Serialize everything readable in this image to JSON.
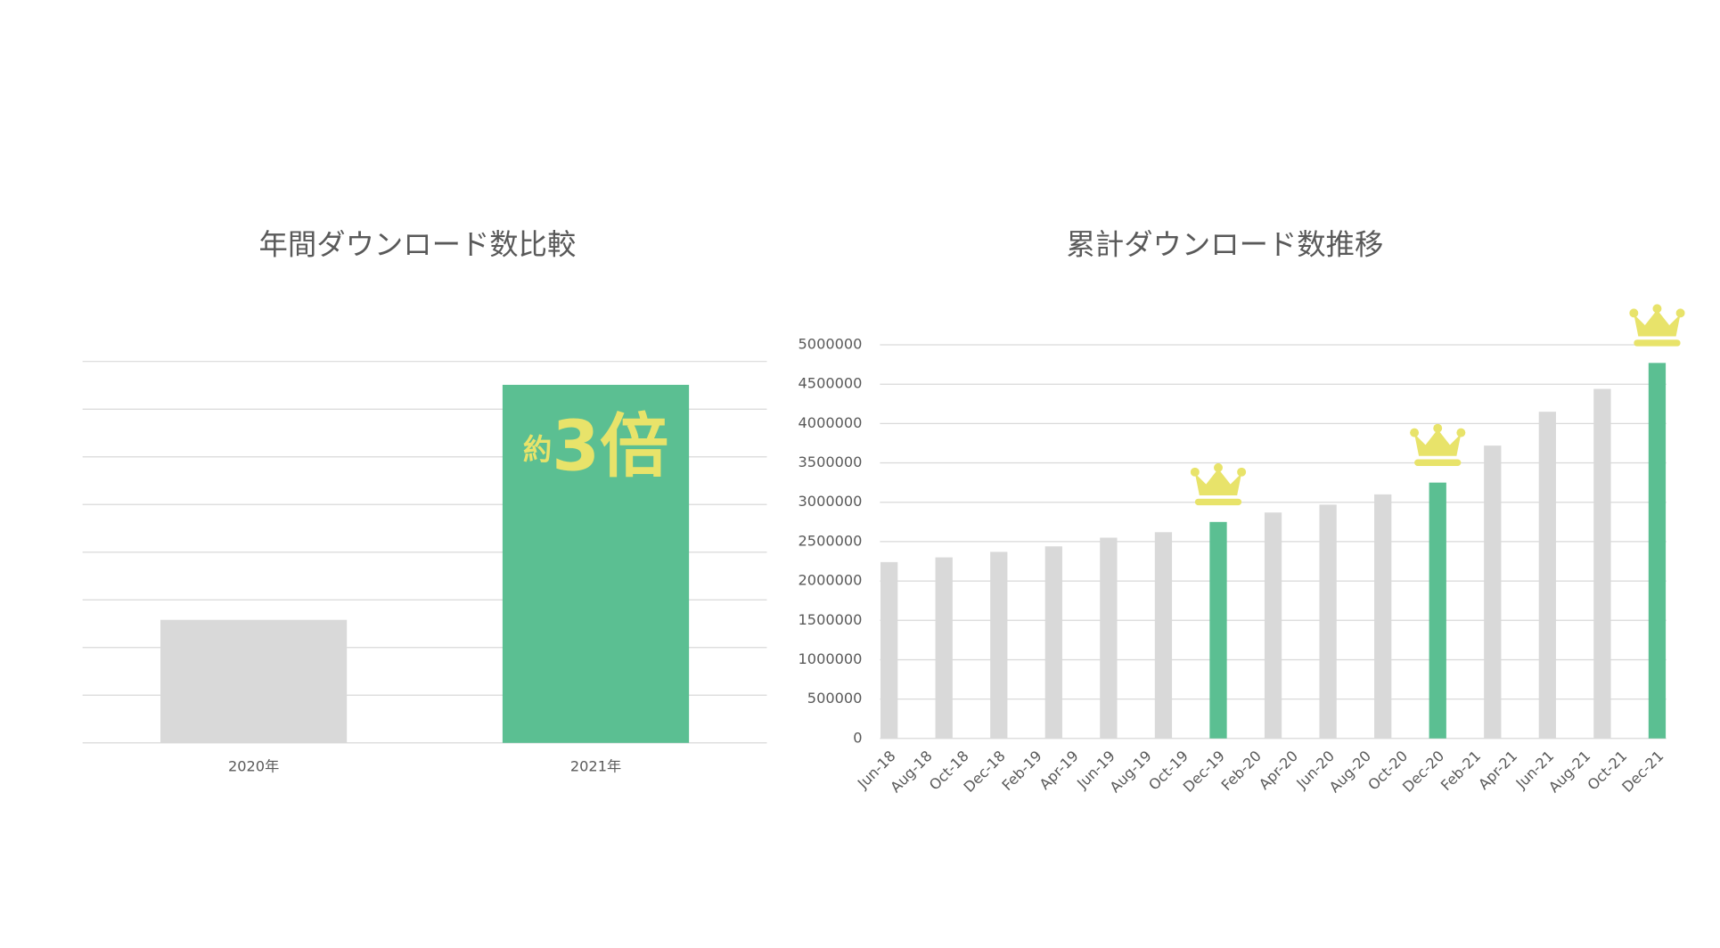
{
  "chart_data": [
    {
      "type": "bar",
      "title": "年間ダウンロード数比較",
      "categories": [
        "2020年",
        "2021年"
      ],
      "values": [
        2.58,
        7.51
      ],
      "colors": [
        "#d9d9d9",
        "#5bbf92"
      ],
      "ylim": [
        0,
        8
      ],
      "yticks": [
        0,
        1,
        2,
        3,
        4,
        5,
        6,
        7,
        8
      ],
      "grid": true,
      "annotation": [
        "約",
        "3倍"
      ]
    },
    {
      "type": "bar",
      "title": "累計ダウンロード数推移",
      "categories": [
        "Jun-18",
        null,
        "Aug-18",
        null,
        "Oct-18",
        null,
        "Dec-18",
        null,
        "Feb-19",
        null,
        "Apr-19",
        null,
        "Jun-19",
        null,
        "Aug-19",
        null,
        "Oct-19",
        null,
        "Dec-19",
        null,
        "Feb-20",
        null,
        "Apr-20",
        null,
        "Jun-20",
        null,
        "Aug-20",
        null,
        "Oct-20",
        null,
        "Dec-20",
        null,
        "Feb-21",
        null,
        "Apr-21",
        null,
        "Jun-21",
        null,
        "Aug-21",
        null,
        "Oct-21",
        null,
        "Dec-21"
      ],
      "values": [
        2240000,
        null,
        null,
        2300000,
        null,
        null,
        2370000,
        null,
        null,
        2440000,
        null,
        null,
        2550000,
        null,
        null,
        2620000,
        null,
        null,
        2750000,
        null,
        null,
        2870000,
        null,
        null,
        2970000,
        null,
        null,
        3100000,
        null,
        null,
        3250000,
        null,
        null,
        3720000,
        null,
        null,
        4150000,
        null,
        null,
        4440000,
        null,
        null,
        4770000
      ],
      "colors": [
        "#d9d9d9",
        null,
        null,
        "#d9d9d9",
        null,
        null,
        "#d9d9d9",
        null,
        null,
        "#d9d9d9",
        null,
        null,
        "#d9d9d9",
        null,
        null,
        "#d9d9d9",
        null,
        null,
        "#5bbf92",
        null,
        null,
        "#d9d9d9",
        null,
        null,
        "#d9d9d9",
        null,
        null,
        "#d9d9d9",
        null,
        null,
        "#5bbf92",
        null,
        null,
        "#d9d9d9",
        null,
        null,
        "#d9d9d9",
        null,
        null,
        "#d9d9d9",
        null,
        null,
        "#5bbf92"
      ],
      "ylim": [
        0,
        5000000
      ],
      "yticks": [
        0,
        500000,
        1000000,
        1500000,
        2000000,
        2500000,
        3000000,
        3500000,
        4000000,
        4500000,
        5000000
      ],
      "grid": true
    }
  ]
}
